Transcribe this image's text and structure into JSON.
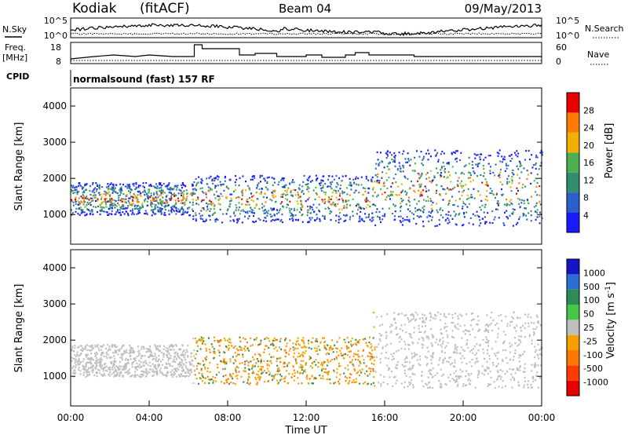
{
  "header": {
    "station": "Kodiak",
    "method": "(fitACF)",
    "beam": "Beam 04",
    "date": "09/May/2013"
  },
  "noise_panel": {
    "left_label": "N.Sky",
    "right_label": "N.Search",
    "left_ticks": [
      "10^5",
      "10^0"
    ],
    "right_ticks": [
      "10^5",
      "10^0"
    ]
  },
  "freq_panel": {
    "left_label_1": "Freq.",
    "left_label_2": "[MHz]",
    "right_label": "Nave",
    "left_ticks": [
      "18",
      "8"
    ],
    "right_ticks": [
      "60",
      "0"
    ]
  },
  "cpid": {
    "label": "CPID",
    "text": "normalsound (fast) 157 RF"
  },
  "chart_data": [
    {
      "type": "heatmap",
      "name": "power",
      "ylabel": "Slant Range [km]",
      "yticks": [
        "1000",
        "2000",
        "3000",
        "4000"
      ],
      "ylim": [
        180,
        4500
      ],
      "xlim": [
        0,
        24
      ],
      "colorbar_label": "Power [dB]",
      "colorbar_ticks": [
        "4",
        "8",
        "12",
        "16",
        "20",
        "24",
        "28"
      ],
      "colorbar_colors": [
        "#1a1aff",
        "#2d5fcc",
        "#2f8f6f",
        "#4caf50",
        "#f2b000",
        "#ff7a00",
        "#e60000"
      ],
      "scatter_regions": [
        {
          "t0": 0.0,
          "t1": 6.2,
          "r0": 1000,
          "r1": 1900
        },
        {
          "t0": 6.2,
          "t1": 15.4,
          "r0": 800,
          "r1": 2100
        },
        {
          "t0": 15.4,
          "t1": 24.0,
          "r0": 700,
          "r1": 2800
        }
      ]
    },
    {
      "type": "heatmap",
      "name": "velocity",
      "ylabel": "Slant Range [km]",
      "yticks": [
        "1000",
        "2000",
        "3000",
        "4000"
      ],
      "ylim": [
        180,
        4500
      ],
      "xlim": [
        0,
        24
      ],
      "xticks": [
        "00:00",
        "04:00",
        "08:00",
        "12:00",
        "16:00",
        "20:00",
        "00:00"
      ],
      "xlabel": "Time UT",
      "colorbar_label": "Velocity [m s",
      "colorbar_label_sup": "-1",
      "colorbar_label_end": "]",
      "colorbar_ticks": [
        "1000",
        "500",
        "100",
        "50",
        "25",
        "-25",
        "-100",
        "-500",
        "-1000"
      ],
      "colorbar_colors": [
        "#1414c8",
        "#2d6ed2",
        "#2e8b57",
        "#46c846",
        "#bebebe",
        "#f5a000",
        "#ff7800",
        "#ff3c00",
        "#e60000"
      ]
    }
  ]
}
